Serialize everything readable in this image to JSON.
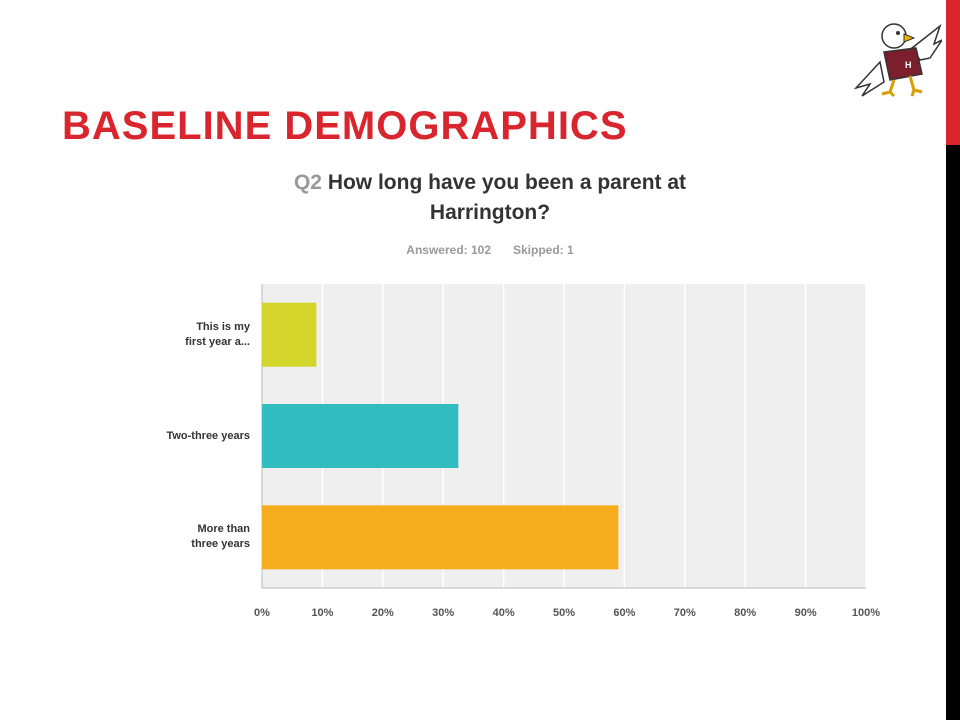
{
  "slide": {
    "title": "BASELINE DEMOGRAPHICS",
    "accent_color": "#d9262e"
  },
  "logo": {
    "icon": "eagle-mascot-icon"
  },
  "survey": {
    "question_number": "Q2",
    "question_line1": "How long have you been a parent at",
    "question_line2": "Harrington?",
    "answered": "Answered: 102",
    "skipped": "Skipped: 1"
  },
  "chart_data": {
    "type": "bar",
    "orientation": "horizontal",
    "categories": [
      "This is my first year a...",
      "Two-three years",
      "More than three years"
    ],
    "category_lines": [
      [
        "This is my",
        "first year a..."
      ],
      [
        "Two-three years"
      ],
      [
        "More than",
        "three years"
      ]
    ],
    "values": [
      9,
      32.5,
      59
    ],
    "colors": [
      "#d3d52b",
      "#33bcbf",
      "#f5ac1d"
    ],
    "xlim": [
      0,
      100
    ],
    "ticks": [
      "0%",
      "10%",
      "20%",
      "30%",
      "40%",
      "50%",
      "60%",
      "70%",
      "80%",
      "90%",
      "100%"
    ],
    "grid": true,
    "plot_background": "#efefef"
  }
}
